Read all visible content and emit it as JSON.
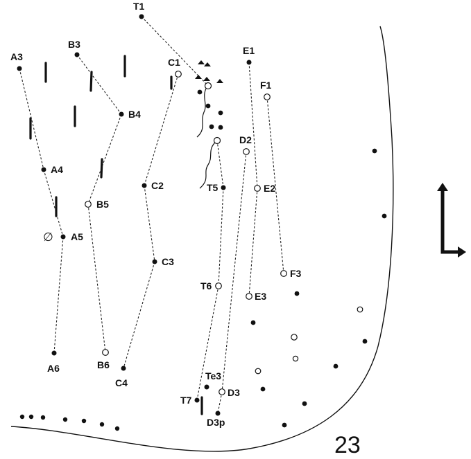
{
  "figure_number": "23",
  "points": [
    {
      "id": "T1",
      "label": "T1",
      "kind": "filled"
    },
    {
      "id": "A3",
      "label": "A3",
      "kind": "filled"
    },
    {
      "id": "B3",
      "label": "B3",
      "kind": "filled"
    },
    {
      "id": "C1",
      "label": "C1",
      "kind": "open"
    },
    {
      "id": "E1",
      "label": "E1",
      "kind": "filled"
    },
    {
      "id": "F1",
      "label": "F1",
      "kind": "open"
    },
    {
      "id": "B4",
      "label": "B4",
      "kind": "filled"
    },
    {
      "id": "D2",
      "label": "D2",
      "kind": "open"
    },
    {
      "id": "A4",
      "label": "A4",
      "kind": "filled"
    },
    {
      "id": "C2",
      "label": "C2",
      "kind": "filled"
    },
    {
      "id": "T5",
      "label": "T5",
      "kind": "filled"
    },
    {
      "id": "E2",
      "label": "E2",
      "kind": "open"
    },
    {
      "id": "B5",
      "label": "B5",
      "kind": "open"
    },
    {
      "id": "A5",
      "label": "A5",
      "kind": "filled"
    },
    {
      "id": "C3",
      "label": "C3",
      "kind": "filled"
    },
    {
      "id": "F3",
      "label": "F3",
      "kind": "open"
    },
    {
      "id": "T6",
      "label": "T6",
      "kind": "open"
    },
    {
      "id": "E3",
      "label": "E3",
      "kind": "open"
    },
    {
      "id": "A6",
      "label": "A6",
      "kind": "filled"
    },
    {
      "id": "B6",
      "label": "B6",
      "kind": "open"
    },
    {
      "id": "C4",
      "label": "C4",
      "kind": "filled"
    },
    {
      "id": "Te3",
      "label": "Te3",
      "kind": "filled"
    },
    {
      "id": "D3",
      "label": "D3",
      "kind": "open"
    },
    {
      "id": "T7",
      "label": "T7",
      "kind": "filled"
    },
    {
      "id": "D3p",
      "label": "D3p",
      "kind": "filled"
    }
  ],
  "connections": [
    [
      "T1",
      "midC"
    ],
    [
      "A3",
      "A4"
    ],
    [
      "A4",
      "A5"
    ],
    [
      "A5",
      "A6"
    ],
    [
      "B3",
      "B4"
    ],
    [
      "B4",
      "B5"
    ],
    [
      "B5",
      "B6"
    ],
    [
      "C1",
      "C2"
    ],
    [
      "C2",
      "C3"
    ],
    [
      "C3",
      "C4"
    ],
    [
      "E1",
      "E2"
    ],
    [
      "E2",
      "E3"
    ],
    [
      "F1",
      "F3"
    ],
    [
      "midO2",
      "T5"
    ],
    [
      "T5",
      "T6"
    ],
    [
      "T6",
      "T7"
    ],
    [
      "D2",
      "D3"
    ],
    [
      "D3",
      "D3p"
    ]
  ],
  "null_symbol": "∅",
  "orientation_symbol": "L-arrow"
}
